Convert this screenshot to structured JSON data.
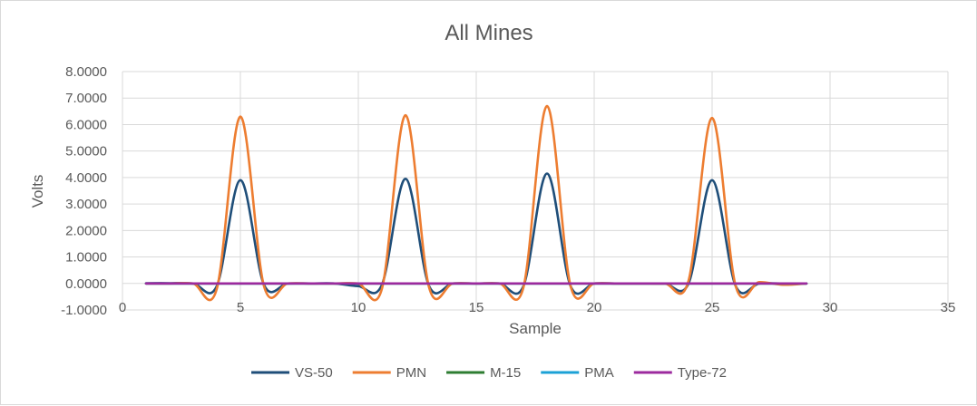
{
  "chart_data": {
    "type": "scatter",
    "title": "All Mines",
    "xlabel": "Sample",
    "ylabel": "Volts",
    "xlim": [
      0,
      35
    ],
    "ylim": [
      -1,
      8
    ],
    "x_ticks": [
      0,
      5,
      10,
      15,
      20,
      25,
      30,
      35
    ],
    "x_tick_labels": [
      "0",
      "5",
      "10",
      "15",
      "20",
      "25",
      "30",
      "35"
    ],
    "y_ticks": [
      -1,
      0,
      1,
      2,
      3,
      4,
      5,
      6,
      7,
      8
    ],
    "y_tick_labels": [
      "-1.0000",
      "0.0000",
      "1.0000",
      "2.0000",
      "3.0000",
      "4.0000",
      "5.0000",
      "6.0000",
      "7.0000",
      "8.0000"
    ],
    "grid": true,
    "smooth": true,
    "legend_position": "bottom",
    "x": [
      1,
      2,
      3,
      4,
      5,
      6,
      7,
      8,
      9,
      10,
      11,
      12,
      13,
      14,
      15,
      16,
      17,
      18,
      19,
      20,
      21,
      22,
      23,
      24,
      25,
      26,
      27,
      28,
      29
    ],
    "series": [
      {
        "name": "VS-50",
        "color": "#1f4e79",
        "values": [
          0.01,
          0.01,
          0.0,
          -0.1,
          3.9,
          -0.05,
          0.0,
          0.0,
          0.0,
          -0.1,
          -0.05,
          3.95,
          -0.1,
          0.0,
          0.0,
          0.0,
          -0.1,
          4.15,
          -0.1,
          0.0,
          0.0,
          0.0,
          0.0,
          0.0,
          3.9,
          -0.1,
          0.0,
          0.0,
          0.0
        ]
      },
      {
        "name": "PMN",
        "color": "#ed7d31",
        "values": [
          0.0,
          0.0,
          0.0,
          -0.2,
          6.3,
          -0.1,
          0.0,
          0.0,
          0.0,
          0.0,
          -0.2,
          6.35,
          -0.15,
          0.0,
          0.0,
          0.0,
          -0.15,
          6.7,
          -0.1,
          0.0,
          0.0,
          0.0,
          0.0,
          0.1,
          6.25,
          -0.1,
          0.05,
          -0.05,
          0.0
        ]
      },
      {
        "name": "M-15",
        "color": "#2e7d32",
        "values": [
          0.0,
          0.0,
          0.0,
          0.0,
          0.0,
          0.0,
          0.0,
          0.0,
          0.0,
          0.0,
          0.0,
          0.0,
          0.0,
          0.0,
          0.0,
          0.0,
          0.0,
          0.0,
          0.0,
          0.0,
          0.0,
          0.0,
          0.0,
          0.0,
          0.0,
          0.0,
          0.0,
          0.0,
          0.0
        ]
      },
      {
        "name": "PMA",
        "color": "#1ba1d6",
        "values": [
          0.0,
          0.0,
          0.0,
          0.0,
          0.0,
          0.0,
          0.0,
          0.0,
          0.0,
          0.0,
          0.0,
          0.0,
          0.0,
          0.0,
          0.0,
          0.0,
          0.0,
          0.0,
          0.0,
          0.0,
          0.0,
          0.0,
          0.0,
          0.0,
          0.0,
          0.0,
          0.0,
          0.0,
          0.0
        ]
      },
      {
        "name": "Type-72",
        "color": "#9c2a9e",
        "values": [
          0.0,
          0.0,
          0.0,
          0.0,
          0.0,
          0.0,
          0.0,
          0.0,
          0.0,
          0.0,
          0.0,
          0.0,
          0.0,
          0.0,
          0.0,
          0.0,
          0.0,
          0.0,
          0.0,
          0.0,
          0.0,
          0.0,
          0.0,
          0.0,
          0.0,
          0.0,
          0.0,
          0.0,
          0.0
        ]
      }
    ]
  }
}
